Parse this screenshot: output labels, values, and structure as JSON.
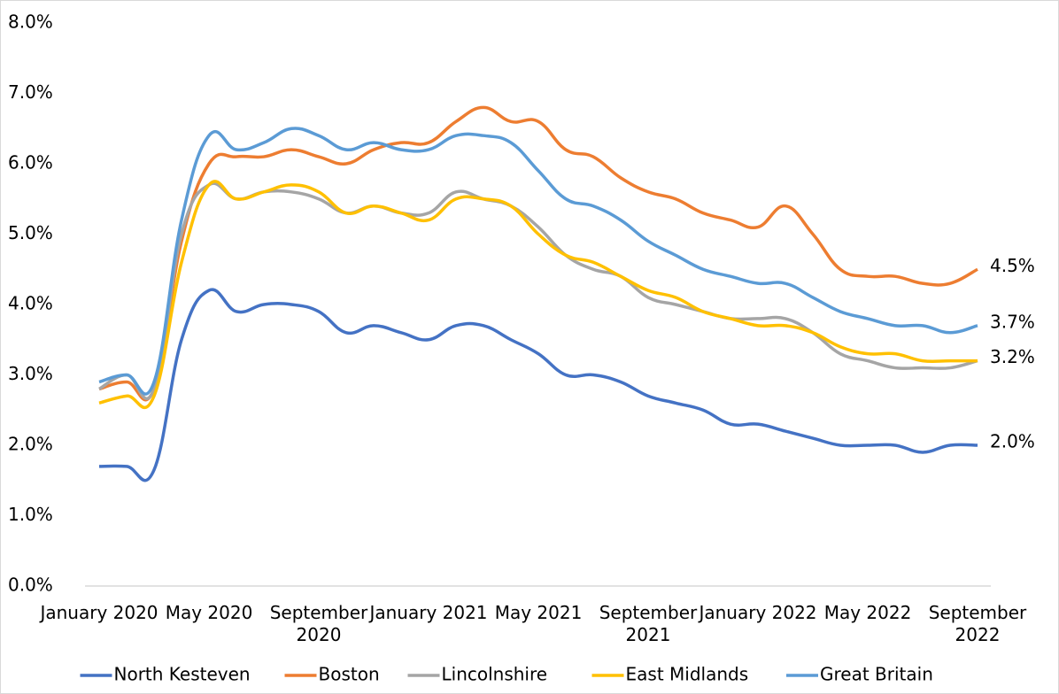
{
  "chart_data": {
    "type": "line",
    "categories": [
      "January 2020",
      null,
      null,
      null,
      "May 2020",
      null,
      null,
      null,
      "September 2020",
      null,
      null,
      null,
      "January 2021",
      null,
      null,
      null,
      "May 2021",
      null,
      null,
      null,
      "September 2021",
      null,
      null,
      null,
      "January 2022",
      null,
      null,
      null,
      "May 2022",
      null,
      null,
      null,
      "September 2022"
    ],
    "series": [
      {
        "name": "North Kesteven",
        "color": "#4472c4",
        "values": [
          1.7,
          1.7,
          1.65,
          3.5,
          4.2,
          3.9,
          4.0,
          4.0,
          3.9,
          3.6,
          3.7,
          3.6,
          3.5,
          3.7,
          3.7,
          3.5,
          3.3,
          3.0,
          3.0,
          2.9,
          2.7,
          2.6,
          2.5,
          2.3,
          2.3,
          2.2,
          2.1,
          2.0,
          2.0,
          2.0,
          1.9,
          2.0,
          2.0
        ],
        "value_labels": [
          null,
          null,
          null,
          null,
          null,
          null,
          null,
          null,
          null,
          null,
          null,
          null,
          null,
          null,
          null,
          null,
          null,
          null,
          null,
          null,
          null,
          null,
          null,
          null,
          null,
          null,
          null,
          null,
          null,
          null,
          null,
          null,
          "2.0%"
        ]
      },
      {
        "name": "Boston",
        "color": "#ed7d31",
        "values": [
          2.8,
          2.9,
          2.8,
          4.9,
          6.0,
          6.1,
          6.1,
          6.2,
          6.1,
          6.0,
          6.2,
          6.3,
          6.3,
          6.6,
          6.8,
          6.6,
          6.6,
          6.2,
          6.1,
          5.8,
          5.6,
          5.5,
          5.3,
          5.2,
          5.1,
          5.4,
          5.0,
          4.5,
          4.4,
          4.4,
          4.3,
          4.3,
          4.5
        ],
        "value_labels": [
          null,
          null,
          null,
          null,
          null,
          null,
          null,
          null,
          null,
          null,
          null,
          null,
          null,
          null,
          null,
          null,
          null,
          null,
          null,
          null,
          null,
          null,
          null,
          null,
          null,
          null,
          null,
          null,
          null,
          null,
          null,
          null,
          "4.5%"
        ]
      },
      {
        "name": "Lincolnshire",
        "color": "#a5a5a5",
        "values": [
          2.8,
          3.0,
          2.8,
          5.0,
          5.7,
          5.5,
          5.6,
          5.6,
          5.5,
          5.3,
          5.4,
          5.3,
          5.3,
          5.6,
          5.5,
          5.4,
          5.1,
          4.7,
          4.5,
          4.4,
          4.1,
          4.0,
          3.9,
          3.8,
          3.8,
          3.8,
          3.6,
          3.3,
          3.2,
          3.1,
          3.1,
          3.1,
          3.2
        ]
      },
      {
        "name": "East Midlands",
        "color": "#ffc000",
        "values": [
          2.6,
          2.7,
          2.7,
          4.6,
          5.7,
          5.5,
          5.6,
          5.7,
          5.6,
          5.3,
          5.4,
          5.3,
          5.2,
          5.5,
          5.5,
          5.4,
          5.0,
          4.7,
          4.6,
          4.4,
          4.2,
          4.1,
          3.9,
          3.8,
          3.7,
          3.7,
          3.6,
          3.4,
          3.3,
          3.3,
          3.2,
          3.2,
          3.2
        ],
        "value_labels": [
          null,
          null,
          null,
          null,
          null,
          null,
          null,
          null,
          null,
          null,
          null,
          null,
          null,
          null,
          null,
          null,
          null,
          null,
          null,
          null,
          null,
          null,
          null,
          null,
          null,
          null,
          null,
          null,
          null,
          null,
          null,
          null,
          "3.2%"
        ]
      },
      {
        "name": "Great Britain",
        "color": "#5b9bd5",
        "values": [
          2.9,
          3.0,
          2.9,
          5.2,
          6.4,
          6.2,
          6.3,
          6.5,
          6.4,
          6.2,
          6.3,
          6.2,
          6.2,
          6.4,
          6.4,
          6.3,
          5.9,
          5.5,
          5.4,
          5.2,
          4.9,
          4.7,
          4.5,
          4.4,
          4.3,
          4.3,
          4.1,
          3.9,
          3.8,
          3.7,
          3.7,
          3.6,
          3.7
        ],
        "value_labels": [
          null,
          null,
          null,
          null,
          null,
          null,
          null,
          null,
          null,
          null,
          null,
          null,
          null,
          null,
          null,
          null,
          null,
          null,
          null,
          null,
          null,
          null,
          null,
          null,
          null,
          null,
          null,
          null,
          null,
          null,
          null,
          null,
          "3.7%"
        ]
      }
    ],
    "ylim": [
      0,
      8
    ],
    "yticks": [
      {
        "value": 0,
        "label": "0.0%"
      },
      {
        "value": 1,
        "label": "1.0%"
      },
      {
        "value": 2,
        "label": "2.0%"
      },
      {
        "value": 3,
        "label": "3.0%"
      },
      {
        "value": 4,
        "label": "4.0%"
      },
      {
        "value": 5,
        "label": "5.0%"
      },
      {
        "value": 6,
        "label": "6.0%"
      },
      {
        "value": 7,
        "label": "7.0%"
      },
      {
        "value": 8,
        "label": "8.0%"
      }
    ],
    "grid": false,
    "legend": "bottom"
  }
}
